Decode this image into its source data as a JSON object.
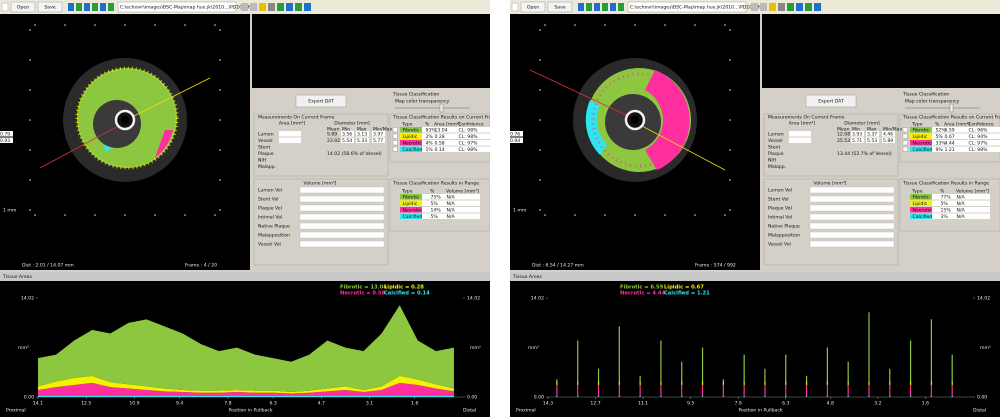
{
  "windows": [
    {
      "toolbar": {
        "buttons": [
          "Open",
          "Save"
        ],
        "path": "C:\\echovir\\images\\BSC-Map\\map hue.jk\\2010...\\PD1Q3H9N"
      },
      "image": {
        "scale": "1 mm",
        "distance": "Dist : 2.01 / 14.07 mm",
        "frame": "Frame : 4 / 20",
        "style": "left"
      },
      "export_button": "Export DAT",
      "classification": {
        "title": "Tissue Classification",
        "transparency": "Map color transparency"
      },
      "measurements": {
        "title": "Measurements On Current Frame",
        "area_header": "Area [mm²]",
        "diameter_header": "Diameter [mm]",
        "columns": [
          "Mean",
          "Min",
          "Max",
          "Min/Max"
        ],
        "rows": [
          [
            "Lumen",
            "9.89",
            "3.56",
            "3.13",
            "3.97",
            "0.79"
          ],
          [
            "Vessel",
            "23.92",
            "5.54",
            "5.33",
            "5.77",
            "0.93"
          ],
          [
            "Stent"
          ],
          [
            "Plaque",
            "14.02 (58.6% of Vessel)"
          ],
          [
            "NIH"
          ],
          [
            "Malapp."
          ]
        ]
      },
      "frame_results": {
        "title": "Tissue Classification Results on Current Frame",
        "columns": [
          "Type",
          "%",
          "Area [mm²]",
          "Confidence"
        ],
        "rows": [
          [
            "Fibrotic",
            "93%",
            "13.04",
            "CL: 98%"
          ],
          [
            "Lipidic",
            "2%",
            "0.28",
            "CL: 98%"
          ],
          [
            "Necrotic",
            "4%",
            "0.58",
            "CL: 97%"
          ],
          [
            "Calcified",
            "1%",
            "0.14",
            "CL: 98%"
          ]
        ]
      },
      "volume": {
        "title": "Volume [mm³]",
        "rows": [
          "Lumen Vol",
          "Stent Vol",
          "Plaque Vol",
          "Intimal Vol",
          "Native Plaque",
          "Malapposition",
          "Vessel Vol"
        ]
      },
      "range_results": {
        "title": "Tissue Classification Results in Range",
        "columns": [
          "Type",
          "%",
          "Volume [mm³]"
        ],
        "rows": [
          [
            "Fibrotic",
            "75%",
            "N/A"
          ],
          [
            "Lipidic",
            "5%",
            "N/A"
          ],
          [
            "Necrotic",
            "14%",
            "N/A"
          ],
          [
            "Calcified",
            "5%",
            "N/A"
          ]
        ]
      },
      "plot": {
        "type": "area",
        "title": "Tissue Areas",
        "ylabel": "mm²",
        "xlabel": "Position in Pullback",
        "start_label": "Proximal",
        "end_label": "Distal",
        "legend_position": "top-right",
        "xlim": [
          14.1,
          0
        ],
        "xticks": [
          14.1,
          12.5,
          10.9,
          9.4,
          7.8,
          6.3,
          4.7,
          3.1,
          1.6
        ],
        "ylim": [
          0,
          14.02
        ],
        "yticks": [
          {
            "value": 0,
            "label": "0.00"
          },
          14.02
        ],
        "x": [
          14.1,
          13.5,
          12.9,
          12.3,
          11.7,
          11.1,
          10.5,
          9.9,
          9.3,
          8.7,
          8.1,
          7.5,
          6.9,
          6.3,
          5.7,
          5.1,
          4.5,
          3.9,
          3.3,
          2.7,
          2.1,
          1.5,
          0.9,
          0.3
        ],
        "series": [
          {
            "name": "Fibrotic = 13.04",
            "color": "#8dc63f",
            "values": [
              4.0,
              3.8,
              5.3,
              6.5,
              6.9,
              8.7,
              9.5,
              8.8,
              8.0,
              6.6,
              5.6,
              6.0,
              5.1,
              4.6,
              4.3,
              5.1,
              6.8,
              5.5,
              5.5,
              7.5,
              10.0,
              5.5,
              4.7,
              5.8
            ]
          },
          {
            "name": "Lipidic = 0.28",
            "color": "#f5f200",
            "values": [
              0.5,
              0.8,
              1.0,
              1.0,
              0.7,
              0.6,
              0.5,
              0.4,
              0.3,
              0.3,
              0.3,
              0.3,
              0.3,
              0.3,
              0.2,
              0.3,
              0.4,
              0.5,
              0.3,
              0.5,
              1.0,
              0.8,
              0.6,
              0.4
            ]
          },
          {
            "name": "Necrotic = 0.58",
            "color": "#ff2fa0",
            "values": [
              0.8,
              1.2,
              1.5,
              1.8,
              1.2,
              1.0,
              0.8,
              0.6,
              0.5,
              0.4,
              0.4,
              0.5,
              0.4,
              0.4,
              0.3,
              0.4,
              0.6,
              0.8,
              0.5,
              0.8,
              1.8,
              1.5,
              1.0,
              0.6
            ]
          },
          {
            "name": "Calcified = 0.14",
            "color": "#2ee6f0",
            "values": [
              0.2,
              0.2,
              0.2,
              0.2,
              0.2,
              0.2,
              0.2,
              0.2,
              0.2,
              0.2,
              0.2,
              0.2,
              0.2,
              0.2,
              0.2,
              0.2,
              0.2,
              0.2,
              0.2,
              0.2,
              0.2,
              0.2,
              0.2,
              0.2
            ]
          }
        ]
      }
    },
    {
      "toolbar": {
        "buttons": [
          "Open",
          "Save"
        ],
        "path": "C:\\echovir\\images\\BSC-Map\\map hue.jk\\2010...\\PD1Q3H9N"
      },
      "image": {
        "scale": "1 mm",
        "distance": "Dist : 6.54 / 14.27 mm",
        "frame": "Frame : 574 / 992",
        "style": "right"
      },
      "export_button": "Export DAT",
      "classification": {
        "title": "Tissue Classification",
        "transparency": "Map color transparency"
      },
      "measurements": {
        "title": "Measurements On Current Frame",
        "area_header": "Area [mm²]",
        "diameter_header": "Diameter [mm]",
        "columns": [
          "Mean",
          "Min",
          "Max",
          "Min/Max"
        ],
        "rows": [
          [
            "Lumen",
            "12.08",
            "3.93",
            "3.37",
            "4.46",
            "0.76"
          ],
          [
            "Vessel",
            "25.53",
            "5.71",
            "5.53",
            "5.89",
            "0.94"
          ],
          [
            "Stent"
          ],
          [
            "Plaque",
            "13.44 (52.7% of Vessel)"
          ],
          [
            "NIH"
          ],
          [
            "Malapp."
          ]
        ]
      },
      "frame_results": {
        "title": "Tissue Classification Results on Current Frame",
        "columns": [
          "Type",
          "%",
          "Area [mm²]",
          "Confidence"
        ],
        "rows": [
          [
            "Fibrotic",
            "52%",
            "6.59",
            "CL: 96%"
          ],
          [
            "Lipidic",
            "5%",
            "0.67",
            "CL: 94%"
          ],
          [
            "Necrotic",
            "33%",
            "4.44",
            "CL: 97%"
          ],
          [
            "Calcified",
            "9%",
            "1.21",
            "CL: 98%"
          ]
        ]
      },
      "volume": {
        "title": "Volume [mm³]",
        "rows": [
          "Lumen Vol",
          "Stent Vol",
          "Plaque Vol",
          "Intimal Vol",
          "Native Plaque",
          "Malapposition",
          "Vessel Vol"
        ]
      },
      "range_results": {
        "title": "Tissue Classification Results in Range",
        "columns": [
          "Type",
          "%",
          "Volume [mm³]"
        ],
        "rows": [
          [
            "Fibrotic",
            "77%",
            "N/A"
          ],
          [
            "Lipidic",
            "5%",
            "N/A"
          ],
          [
            "Necrotic",
            "15%",
            "N/A"
          ],
          [
            "Calcified",
            "3%",
            "N/A"
          ]
        ]
      },
      "plot": {
        "type": "bar",
        "title": "Tissue Areas",
        "ylabel": "mm²",
        "xlabel": "Position in Pullback",
        "start_label": "Proximal",
        "end_label": "Distal",
        "legend_position": "top-left",
        "xlim": [
          14.3,
          0
        ],
        "xticks": [
          14.3,
          12.7,
          11.1,
          9.5,
          7.9,
          6.3,
          4.8,
          3.2,
          1.6
        ],
        "ylim": [
          0,
          14.02
        ],
        "yticks": [
          {
            "value": 0,
            "label": "0.00"
          },
          14.02
        ],
        "x": [
          14.0,
          13.3,
          12.6,
          11.9,
          11.2,
          10.5,
          9.8,
          9.1,
          8.4,
          7.7,
          7.0,
          6.3,
          5.6,
          4.9,
          4.2,
          3.5,
          2.8,
          2.1,
          1.4,
          0.7
        ],
        "series": [
          {
            "name": "Fibrotic = 6.59",
            "color": "#8dc63f",
            "values": [
              0.3,
              5.8,
              1.8,
              7.8,
              0.8,
              5.8,
              2.8,
              4.8,
              0.3,
              3.8,
              1.8,
              3.8,
              0.8,
              4.8,
              2.8,
              9.8,
              1.8,
              5.8,
              8.8,
              3.8
            ]
          },
          {
            "name": "Lipidic = 0.67",
            "color": "#f5f200",
            "values": [
              0.5,
              0.5,
              0.5,
              0.5,
              0.5,
              0.5,
              0.5,
              0.5,
              0.5,
              0.5,
              0.5,
              0.5,
              0.5,
              0.5,
              0.5,
              0.5,
              0.5,
              0.5,
              0.5,
              0.5
            ]
          },
          {
            "name": "Necrotic = 4.44",
            "color": "#ff2fa0",
            "values": [
              1.5,
              1.5,
              1.5,
              1.5,
              1.5,
              1.5,
              1.5,
              1.5,
              1.5,
              1.5,
              1.5,
              1.5,
              1.5,
              1.5,
              1.5,
              1.5,
              1.5,
              1.5,
              1.5,
              1.5
            ]
          },
          {
            "name": "Calcified = 1.21",
            "color": "#2ee6f0",
            "values": [
              0.2,
              0.2,
              0.2,
              0.2,
              0.2,
              0.2,
              0.2,
              0.2,
              0.2,
              0.2,
              0.2,
              0.2,
              0.2,
              0.2,
              0.2,
              0.2,
              0.2,
              0.2,
              0.2,
              0.2
            ]
          }
        ]
      }
    }
  ]
}
